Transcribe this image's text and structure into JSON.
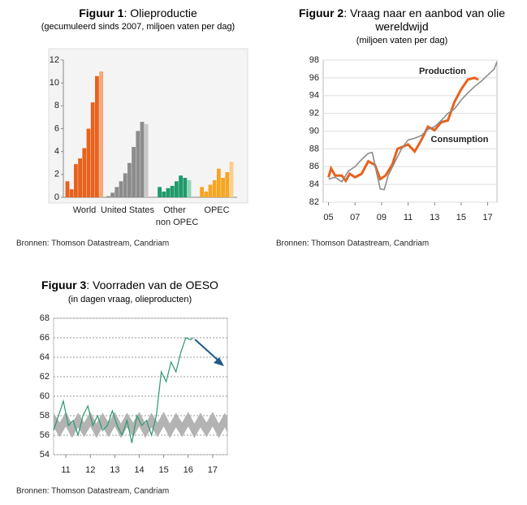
{
  "chart_data": [
    {
      "type": "bar",
      "title_label": "Figuur 1",
      "title": ": Olieproductie",
      "subtitle": "(gecumuleerd sinds 2007, miljoen vaten per dag)",
      "groups": [
        {
          "label": "World",
          "color": "#e8621c",
          "last_color": "#f6a878",
          "values": [
            1.4,
            0.7,
            2.9,
            3.4,
            4.3,
            6.0,
            8.3,
            10.6,
            11.0
          ]
        },
        {
          "label": "United States",
          "color": "#8c8c8c",
          "last_color": "#c8c8c8",
          "values": [
            0.1,
            0.4,
            0.9,
            1.4,
            2.1,
            3.0,
            4.4,
            5.8,
            6.6,
            6.4
          ]
        },
        {
          "label": [
            "Other",
            "non OPEC"
          ],
          "color": "#1e9a6a",
          "last_color": "#8fd4b6",
          "values": [
            0.9,
            0.5,
            0.8,
            1.0,
            1.4,
            1.9,
            1.7,
            1.5
          ]
        },
        {
          "label": "OPEC",
          "color": "#f5a623",
          "last_color": "#fbcf8a",
          "values": [
            0.9,
            0.5,
            1.1,
            1.5,
            2.5,
            1.7,
            2.2,
            3.1
          ]
        }
      ],
      "ylim": [
        0,
        12
      ],
      "yticks": [
        0,
        2,
        4,
        6,
        8,
        10,
        12
      ],
      "source": "Bronnen: Thomson Datastream, Candriam"
    },
    {
      "type": "line",
      "title_label": "Figuur 2",
      "title": ": Vraag naar en aanbod van olie",
      "title_line2": "wereldwijd",
      "subtitle": "(miljoen vaten per dag)",
      "series": [
        {
          "name": "Production",
          "color": "#e8621c",
          "x": [
            2005,
            2005.2,
            2005.5,
            2006,
            2006.3,
            2006.6,
            2007,
            2007.5,
            2008,
            2008.5,
            2008.9,
            2009.3,
            2009.8,
            2010.2,
            2010.7,
            2011,
            2011.5,
            2012,
            2012.5,
            2013,
            2013.5,
            2014,
            2014.5,
            2015,
            2015.5,
            2016,
            2016.3
          ],
          "values": [
            84.8,
            85.8,
            85,
            85,
            84.4,
            85.2,
            84.8,
            85.2,
            86.6,
            86.2,
            84.6,
            85,
            86.2,
            88,
            88.3,
            88.5,
            87.7,
            89,
            90.5,
            90.1,
            91,
            91.2,
            93.3,
            94.7,
            95.8,
            96,
            95.8
          ]
        },
        {
          "name": "Consumption",
          "color": "#8c8c8c",
          "x": [
            2005,
            2005.5,
            2006,
            2006.5,
            2007,
            2007.5,
            2008,
            2008.3,
            2008.6,
            2008.9,
            2009.2,
            2009.5,
            2010,
            2010.5,
            2011,
            2011.5,
            2012,
            2012.5,
            2013,
            2013.5,
            2014,
            2014.5,
            2015,
            2015.5,
            2016,
            2016.5,
            2017,
            2017.5,
            2017.7
          ],
          "values": [
            84.6,
            84.8,
            84.3,
            85.5,
            86,
            86.8,
            87.5,
            87.6,
            85.5,
            83.5,
            83.4,
            85,
            86.5,
            88,
            89,
            89.2,
            89.5,
            90.2,
            90.5,
            91.2,
            92,
            92.5,
            93.5,
            94.3,
            95,
            95.6,
            96.3,
            97,
            97.8
          ]
        }
      ],
      "xlim": [
        2004.6,
        2017.7
      ],
      "xticks": [
        {
          "value": 2005,
          "label": "05"
        },
        {
          "value": 2007,
          "label": "07"
        },
        {
          "value": 2009,
          "label": "09"
        },
        {
          "value": 2011,
          "label": "11"
        },
        {
          "value": 2013,
          "label": "13"
        },
        {
          "value": 2015,
          "label": "15"
        },
        {
          "value": 2017,
          "label": "17"
        }
      ],
      "ylim": [
        82,
        98
      ],
      "yticks": [
        82,
        84,
        86,
        88,
        90,
        92,
        94,
        96,
        98
      ],
      "grid": true,
      "source": "Bronnen: Thomson Datastream, Candriam"
    },
    {
      "type": "line",
      "title_label": "Figuur 3",
      "title": ": Voorraden van de OESO",
      "subtitle": "(in  dagen vraag, olieproducten)",
      "series": [
        {
          "color": "#2a9a6e",
          "x": [
            2010.5,
            2010.7,
            2010.9,
            2011.1,
            2011.3,
            2011.5,
            2011.7,
            2011.9,
            2012.1,
            2012.3,
            2012.5,
            2012.7,
            2012.9,
            2013.1,
            2013.3,
            2013.5,
            2013.7,
            2013.9,
            2014.1,
            2014.3,
            2014.5,
            2014.7,
            2014.9,
            2015.1,
            2015.3,
            2015.5,
            2015.7,
            2015.9,
            2016.1,
            2016.2
          ],
          "values": [
            56.5,
            58,
            59.5,
            57,
            57.5,
            56,
            58,
            59,
            57,
            58,
            56.5,
            57,
            58.5,
            57,
            56,
            57.5,
            55.2,
            58,
            57,
            57.5,
            56,
            58,
            62.5,
            61.5,
            63.5,
            62.5,
            64.5,
            66,
            65.8,
            66
          ]
        }
      ],
      "range": {
        "color": "#b3b3b3",
        "x": [
          2010.5,
          2010.75,
          2011,
          2011.25,
          2011.5,
          2011.75,
          2012,
          2012.25,
          2012.5,
          2012.75,
          2013,
          2013.25,
          2013.5,
          2013.75,
          2014,
          2014.25,
          2014.5,
          2014.75,
          2015,
          2015.25,
          2015.5,
          2015.75,
          2016,
          2016.25,
          2016.5,
          2016.75,
          2017,
          2017.25,
          2017.5,
          2017.6
        ],
        "high": [
          58.3,
          57.3,
          58.4,
          57.2,
          58.3,
          57.3,
          58.4,
          57.2,
          58.3,
          57.3,
          58.4,
          57.2,
          58.3,
          57.3,
          58.4,
          57.2,
          58.3,
          57.3,
          58.4,
          57.2,
          58.3,
          57.3,
          58.4,
          57.2,
          58.3,
          57.3,
          58.4,
          57.2,
          58.3,
          57.8
        ],
        "low": [
          56.8,
          55.8,
          56.9,
          55.7,
          56.8,
          55.8,
          56.9,
          55.7,
          56.8,
          55.8,
          56.9,
          55.7,
          56.8,
          55.8,
          56.9,
          55.7,
          56.8,
          55.8,
          56.9,
          55.7,
          56.8,
          55.8,
          56.9,
          55.7,
          56.8,
          55.8,
          56.9,
          55.7,
          56.8,
          56.2
        ]
      },
      "xlim": [
        2010.5,
        2017.6
      ],
      "xticks": [
        {
          "value": 2011,
          "label": "11"
        },
        {
          "value": 2012,
          "label": "12"
        },
        {
          "value": 2013,
          "label": "13"
        },
        {
          "value": 2014,
          "label": "14"
        },
        {
          "value": 2015,
          "label": "15"
        },
        {
          "value": 2016,
          "label": "16"
        },
        {
          "value": 2017,
          "label": "17"
        }
      ],
      "ylim": [
        54,
        68
      ],
      "yticks": [
        54,
        56,
        58,
        60,
        62,
        64,
        66,
        68
      ],
      "grid": true,
      "source": "Bronnen: Thomson Datastream, Candriam"
    }
  ]
}
